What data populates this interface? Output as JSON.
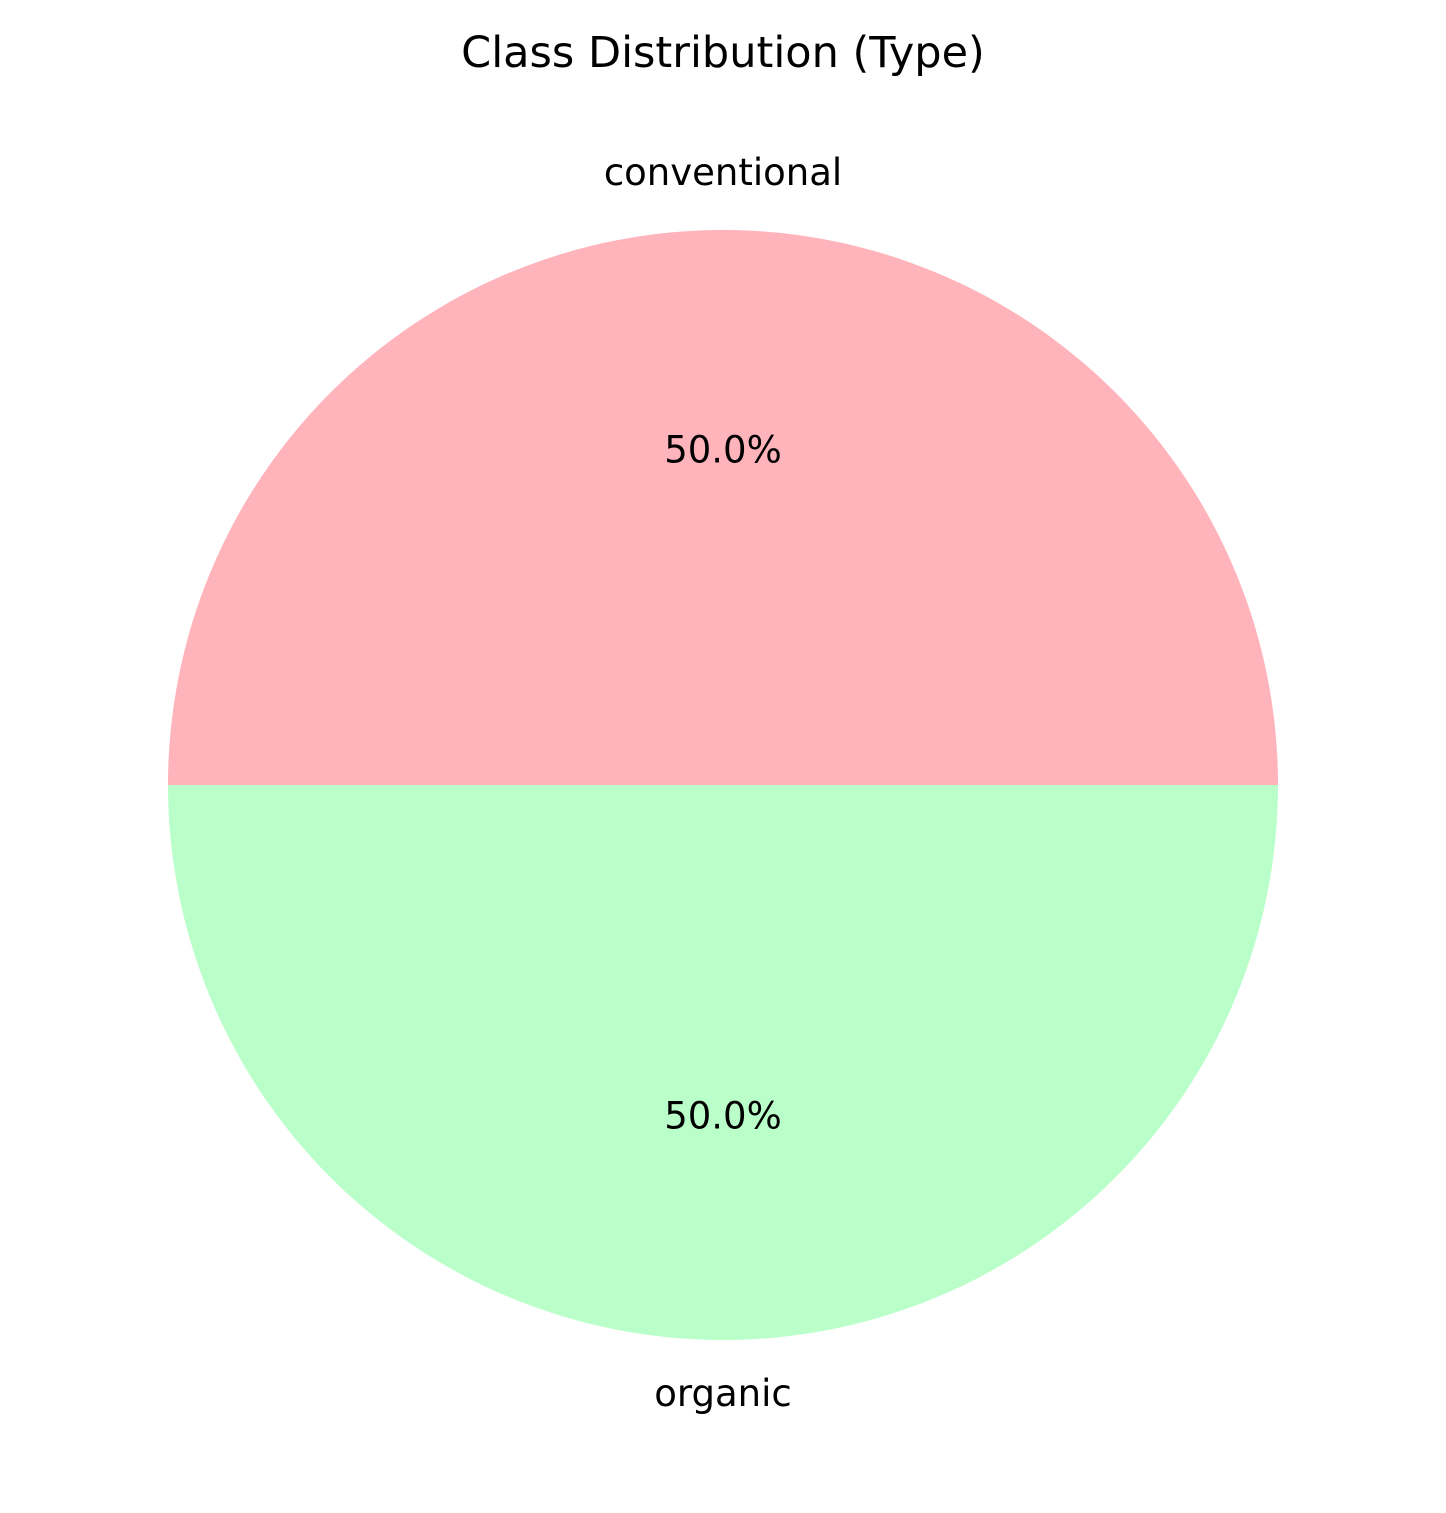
{
  "chart_data": {
    "type": "pie",
    "title": "Class Distribution (Type)",
    "slices": [
      {
        "label": "conventional",
        "value": 50.0,
        "pct_label": "50.0%",
        "color": "#ffb3ba"
      },
      {
        "label": "organic",
        "value": 50.0,
        "pct_label": "50.0%",
        "color": "#baffc9"
      }
    ],
    "start_angle_deg": 0,
    "direction": "counterclockwise",
    "legend": "none"
  }
}
